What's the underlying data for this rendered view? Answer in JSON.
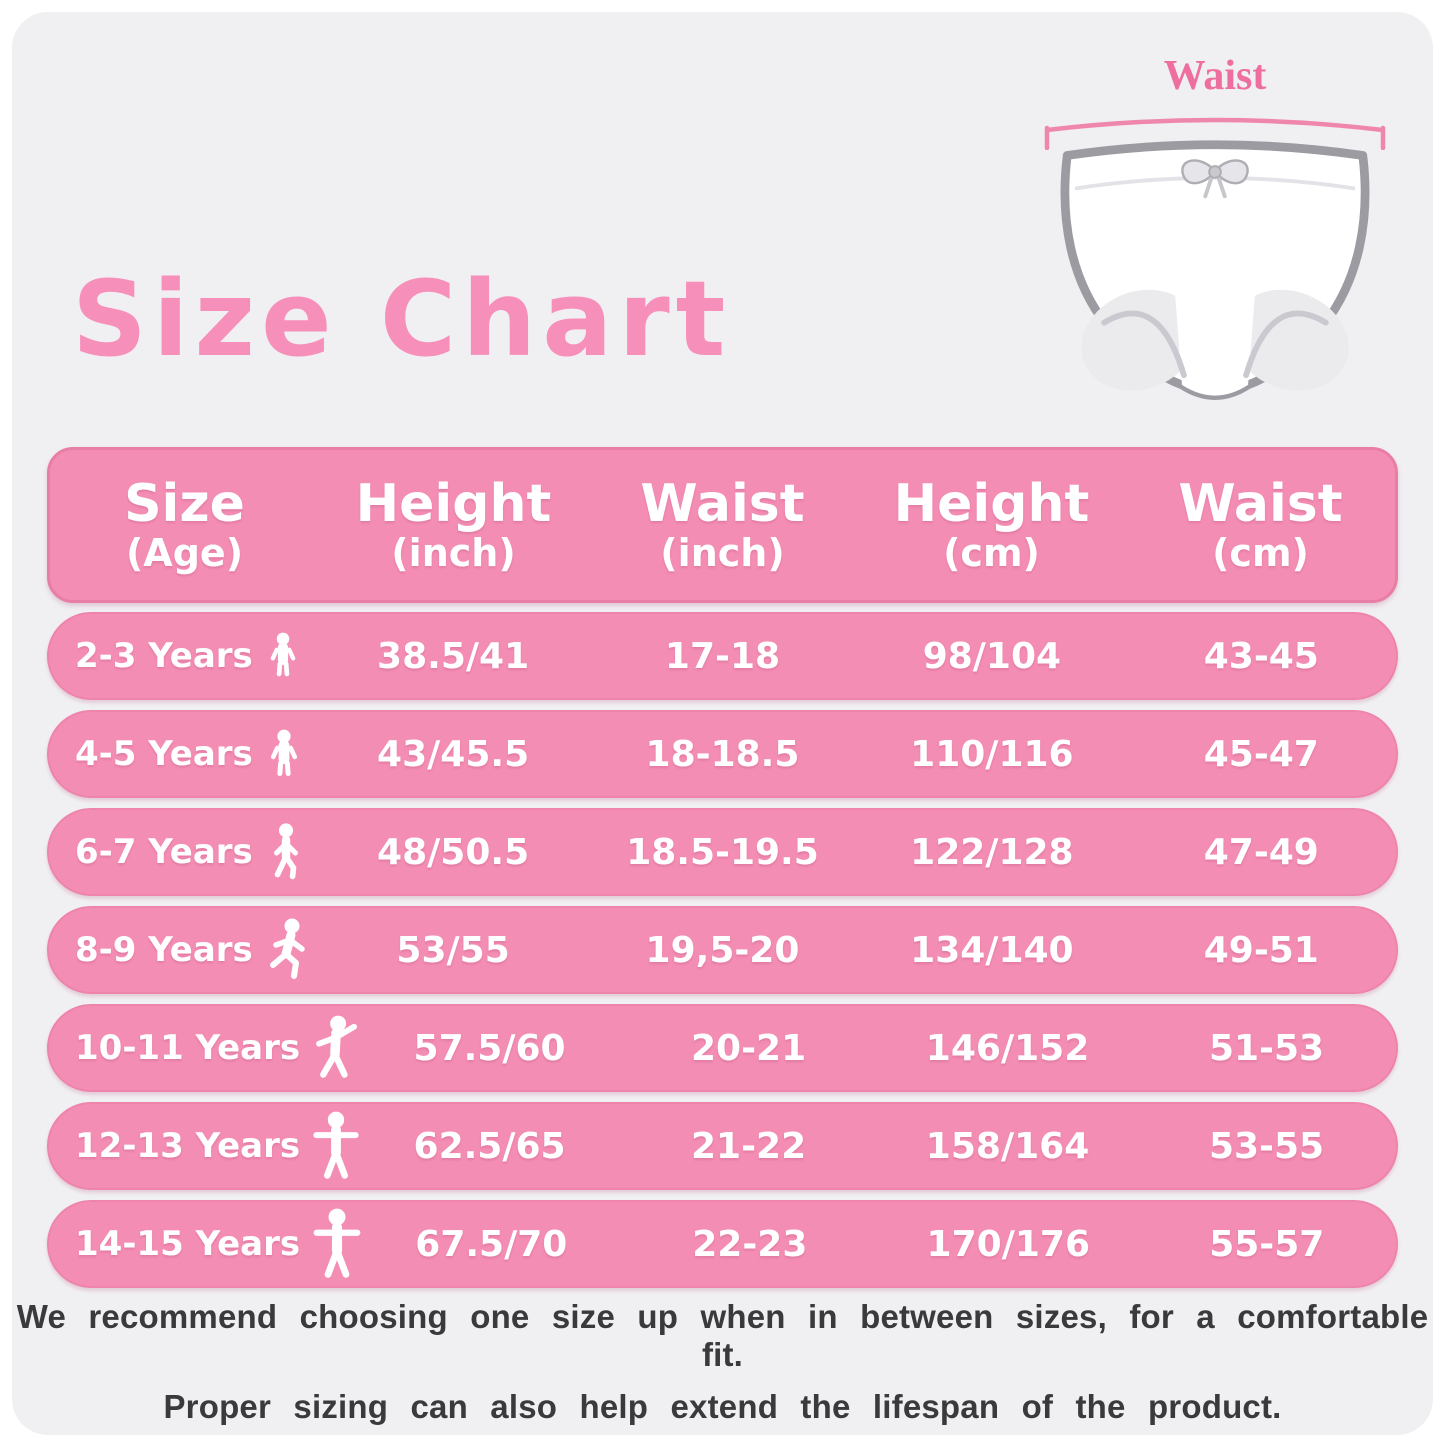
{
  "title": "Size Chart",
  "diagram": {
    "waist_label": "Waist",
    "underwear_icon": "underwear-illustration",
    "measure_icon": "waist-measurement-line"
  },
  "table": {
    "headers": [
      {
        "main": "Size",
        "sub": "(Age)"
      },
      {
        "main": "Height",
        "sub": "(inch)"
      },
      {
        "main": "Waist",
        "sub": "(inch)"
      },
      {
        "main": "Height",
        "sub": "(cm)"
      },
      {
        "main": "Waist",
        "sub": "(cm)"
      }
    ],
    "rows": [
      {
        "age": "2-3 Years",
        "icon": "toddler-icon",
        "height_inch": "38.5/41",
        "waist_inch": "17-18",
        "height_cm": "98/104",
        "waist_cm": "43-45"
      },
      {
        "age": "4-5 Years",
        "icon": "toddler-icon",
        "height_inch": "43/45.5",
        "waist_inch": "18-18.5",
        "height_cm": "110/116",
        "waist_cm": "45-47"
      },
      {
        "age": "6-7 Years",
        "icon": "walking-child-icon",
        "height_inch": "48/50.5",
        "waist_inch": "18.5-19.5",
        "height_cm": "122/128",
        "waist_cm": "47-49"
      },
      {
        "age": "8-9 Years",
        "icon": "running-child-icon",
        "height_inch": "53/55",
        "waist_inch": "19,5-20",
        "height_cm": "134/140",
        "waist_cm": "49-51"
      },
      {
        "age": "10-11 Years",
        "icon": "dancing-child-icon",
        "height_inch": "57.5/60",
        "waist_inch": "20-21",
        "height_cm": "146/152",
        "waist_cm": "51-53"
      },
      {
        "age": "12-13 Years",
        "icon": "standing-arms-out-icon",
        "height_inch": "62.5/65",
        "waist_inch": "21-22",
        "height_cm": "158/164",
        "waist_cm": "53-55"
      },
      {
        "age": "14-15 Years",
        "icon": "standing-arms-out-icon",
        "height_inch": "67.5/70",
        "waist_inch": "22-23",
        "height_cm": "170/176",
        "waist_cm": "55-57"
      }
    ]
  },
  "footer": {
    "line1": "We recommend choosing one size up when in between sizes, for a comfortable fit.",
    "line2": "Proper sizing can also help extend the lifespan of the product."
  },
  "colors": {
    "panel_bg": "#f0eff1",
    "bar_pink": "#f48db4",
    "bar_border": "#e87ea6",
    "title_pink": "#f78fbb",
    "waist_label_pink": "#ee6f9f",
    "footer_text": "#3a3a3c",
    "text_on_pink": "#ffffff"
  }
}
